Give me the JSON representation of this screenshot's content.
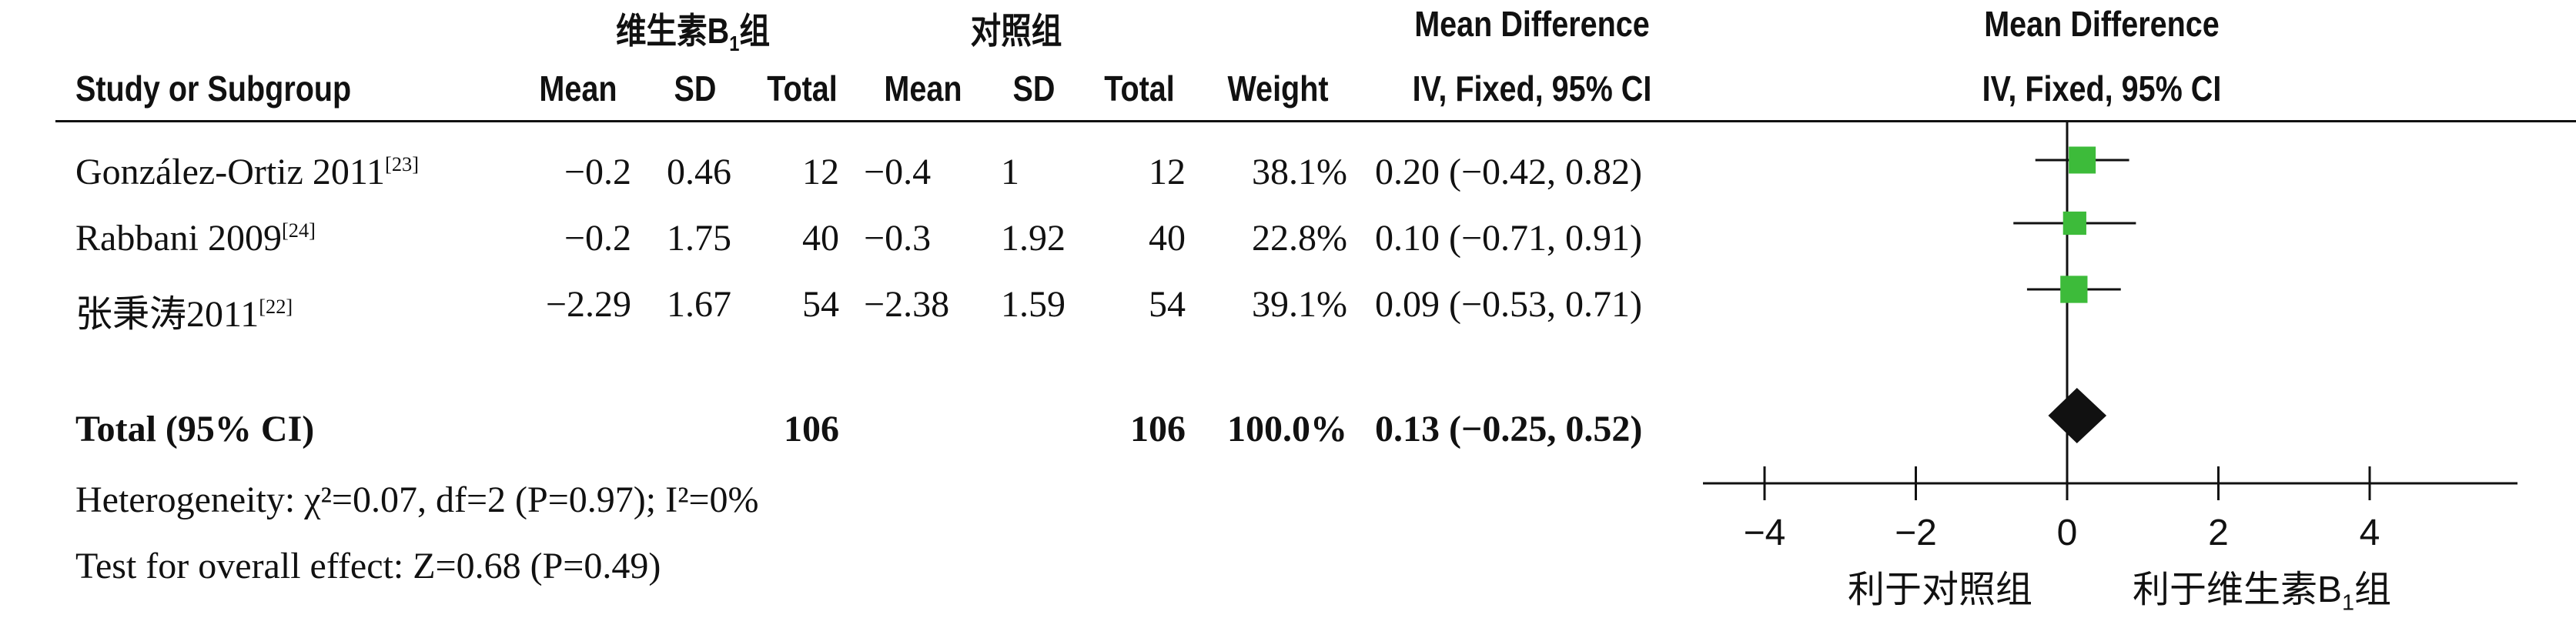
{
  "header": {
    "group_a": "维生素B",
    "group_a_sub": "1",
    "group_a_suffix": "组",
    "group_b": "对照组",
    "md_col_title": "Mean Difference",
    "md_col_sub": "IV, Fixed, 95% CI",
    "plot_title": "Mean Difference",
    "plot_sub": "IV, Fixed, 95% CI",
    "study": "Study or Subgroup",
    "mean_a": "Mean",
    "sd_a": "SD",
    "total_a": "Total",
    "mean_b": "Mean",
    "sd_b": "SD",
    "total_b": "Total",
    "weight": "Weight"
  },
  "studies": [
    {
      "name": "González-Ortiz 2011",
      "ref": "[23]",
      "mean_a": "−0.2",
      "sd_a": "0.46",
      "n_a": "12",
      "mean_b": "−0.4",
      "sd_b": "1",
      "n_b": "12",
      "weight": "38.1%",
      "ci_text": "0.20 (−0.42, 0.82)"
    },
    {
      "name": "Rabbani 2009",
      "ref": "[24]",
      "mean_a": "−0.2",
      "sd_a": "1.75",
      "n_a": "40",
      "mean_b": "−0.3",
      "sd_b": "1.92",
      "n_b": "40",
      "weight": "22.8%",
      "ci_text": "0.10 (−0.71, 0.91)"
    },
    {
      "name": "张秉涛2011",
      "ref": "[22]",
      "mean_a": "−2.29",
      "sd_a": "1.67",
      "n_a": "54",
      "mean_b": "−2.38",
      "sd_b": "1.59",
      "n_b": "54",
      "weight": "39.1%",
      "ci_text": "0.09 (−0.53, 0.71)"
    }
  ],
  "total": {
    "label": "Total (95% CI)",
    "n_a": "106",
    "n_b": "106",
    "weight": "100.0%",
    "ci_text": "0.13 (−0.25, 0.52)"
  },
  "footer": {
    "heterogeneity": "Heterogeneity: χ²=0.07, df=2 (P=0.97); I²=0%",
    "overall": "Test for overall effect: Z=0.68 (P=0.49)"
  },
  "axis": {
    "favours_left": "利于对照组",
    "favours_right": "利于维生素B",
    "favours_right_sub": "1",
    "favours_right_suffix": "组"
  },
  "colors": {
    "marker": "#3dbb3a",
    "diamond": "#111111",
    "line": "#111111"
  },
  "chart_data": {
    "type": "scatter",
    "xlim": [
      -4,
      4
    ],
    "ticks": [
      -4,
      -2,
      0,
      2,
      4
    ],
    "tick_labels": [
      "−4",
      "−2",
      "0",
      "2",
      "4"
    ],
    "points": [
      {
        "study": "González-Ortiz 2011",
        "md": 0.2,
        "lower": -0.42,
        "upper": 0.82,
        "weight": 38.1
      },
      {
        "study": "Rabbani 2009",
        "md": 0.1,
        "lower": -0.71,
        "upper": 0.91,
        "weight": 22.8
      },
      {
        "study": "张秉涛2011",
        "md": 0.09,
        "lower": -0.53,
        "upper": 0.71,
        "weight": 39.1
      }
    ],
    "pooled": {
      "md": 0.13,
      "lower": -0.25,
      "upper": 0.52
    }
  }
}
